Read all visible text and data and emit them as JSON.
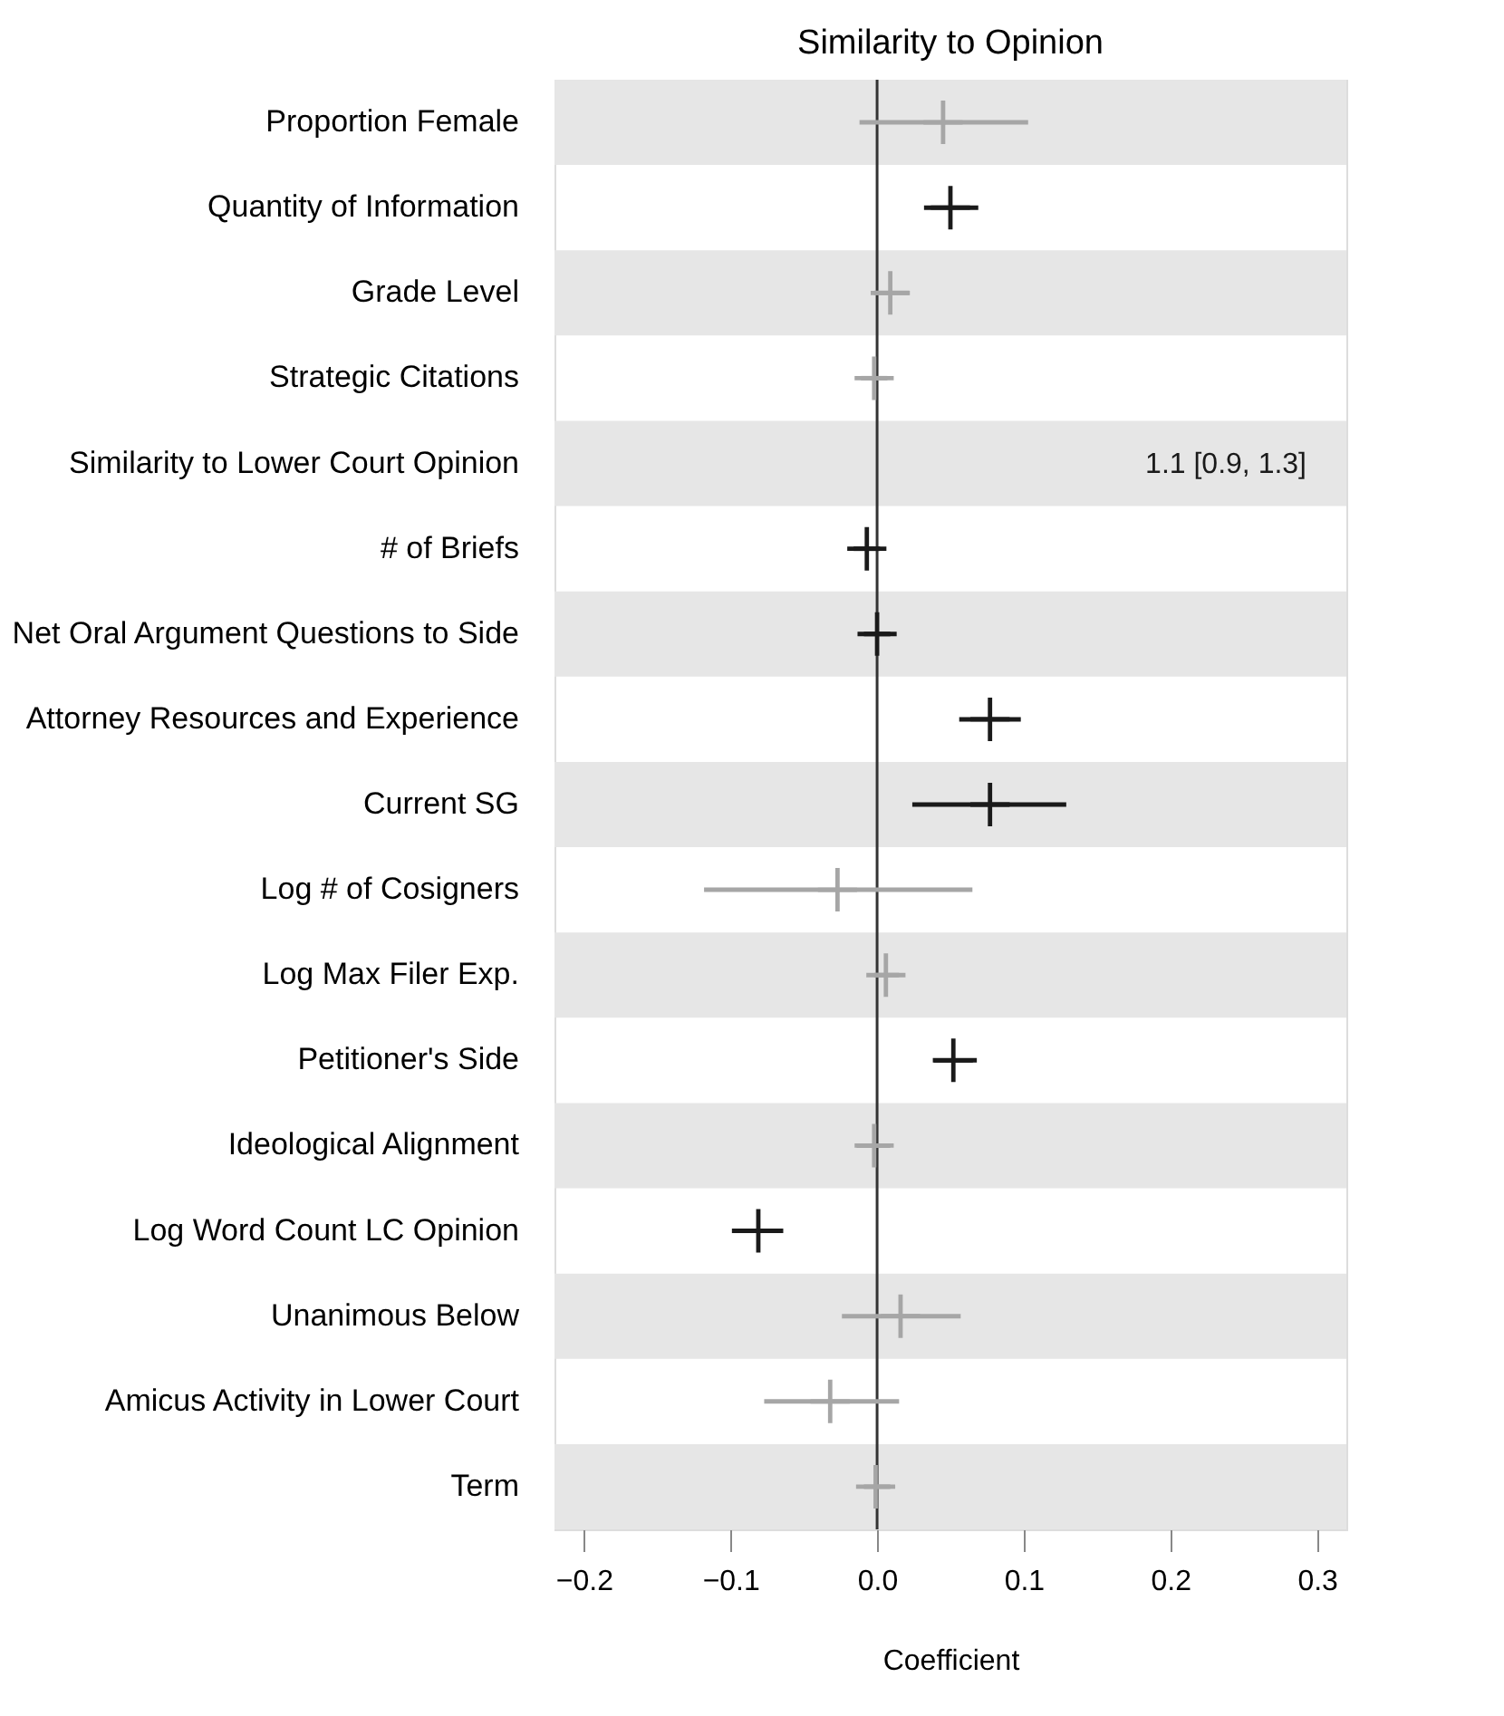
{
  "chart_data": {
    "type": "scatter",
    "orientation": "horizontal",
    "title": "Similarity to Opinion",
    "xlabel": "Coefficient",
    "categories": [
      "Proportion Female",
      "Quantity of Information",
      "Grade Level",
      "Strategic Citations",
      "Similarity to Lower Court Opinion",
      "# of Briefs",
      "Net Oral Argument Questions to Side",
      "Attorney Resources and Experience",
      "Current SG",
      "Log # of Cosigners",
      "Log Max Filer Exp.",
      "Petitioner's Side",
      "Ideological Alignment",
      "Log Word Count LC Opinion",
      "Unanimous Below",
      "Amicus Activity in Lower Court",
      "Term"
    ],
    "values": [
      0.045,
      0.05,
      0.009,
      -0.002,
      null,
      -0.007,
      0.0,
      0.077,
      0.077,
      -0.027,
      0.006,
      0.052,
      -0.002,
      -0.081,
      0.016,
      -0.032,
      -0.001
    ],
    "errors": [
      [
        -0.012,
        0.103
      ],
      [
        0.032,
        0.069
      ],
      [
        -0.002,
        0.022
      ],
      [
        -0.011,
        0.007
      ],
      null,
      [
        -0.016,
        0.002
      ],
      [
        -0.009,
        0.009
      ],
      [
        0.056,
        0.098
      ],
      [
        0.024,
        0.129
      ],
      [
        -0.118,
        0.065
      ],
      [
        -0.002,
        0.015
      ],
      [
        0.038,
        0.068
      ],
      [
        -0.014,
        0.009
      ],
      [
        -0.099,
        -0.064
      ],
      [
        -0.024,
        0.057
      ],
      [
        -0.077,
        0.015
      ],
      [
        -0.009,
        0.009
      ]
    ],
    "colors": [
      "#a6a6a6",
      "#1a1a1a",
      "#a6a6a6",
      "#a6a6a6",
      "#1a1a1a",
      "#1a1a1a",
      "#1a1a1a",
      "#1a1a1a",
      "#1a1a1a",
      "#a6a6a6",
      "#a6a6a6",
      "#1a1a1a",
      "#a6a6a6",
      "#1a1a1a",
      "#a6a6a6",
      "#a6a6a6",
      "#a6a6a6"
    ],
    "marker": "cross",
    "xlim": [
      -0.22,
      0.32
    ],
    "xticks": [
      {
        "value": -0.2,
        "label": "−0.2"
      },
      {
        "value": -0.1,
        "label": "−0.1"
      },
      {
        "value": 0,
        "label": "0.0"
      },
      {
        "value": 0.1,
        "label": "0.1"
      },
      {
        "value": 0.2,
        "label": "0.2"
      },
      {
        "value": 0.3,
        "label": "0.3"
      }
    ],
    "ref_lines": [
      {
        "axis": "x",
        "value": 0,
        "color": "#333333"
      }
    ],
    "bands": [
      {
        "axis": "y",
        "from": "Proportion Female",
        "to": "Proportion Female",
        "color": "#e6e6e6"
      },
      {
        "axis": "y",
        "from": "Grade Level",
        "to": "Grade Level",
        "color": "#e6e6e6"
      },
      {
        "axis": "y",
        "from": "Similarity to Lower Court Opinion",
        "to": "Similarity to Lower Court Opinion",
        "color": "#e6e6e6"
      },
      {
        "axis": "y",
        "from": "Net Oral Argument Questions to Side",
        "to": "Net Oral Argument Questions to Side",
        "color": "#e6e6e6"
      },
      {
        "axis": "y",
        "from": "Current SG",
        "to": "Current SG",
        "color": "#e6e6e6"
      },
      {
        "axis": "y",
        "from": "Log Max Filer Exp.",
        "to": "Log Max Filer Exp.",
        "color": "#e6e6e6"
      },
      {
        "axis": "y",
        "from": "Ideological Alignment",
        "to": "Ideological Alignment",
        "color": "#e6e6e6"
      },
      {
        "axis": "y",
        "from": "Unanimous Below",
        "to": "Unanimous Below",
        "color": "#e6e6e6"
      },
      {
        "axis": "y",
        "from": "Term",
        "to": "Term",
        "color": "#e6e6e6"
      }
    ],
    "value_labels": [
      null,
      null,
      null,
      null,
      "1.1 [0.9, 1.3]",
      null,
      null,
      null,
      null,
      null,
      null,
      null,
      null,
      null,
      null,
      null,
      null
    ],
    "grid": false
  }
}
